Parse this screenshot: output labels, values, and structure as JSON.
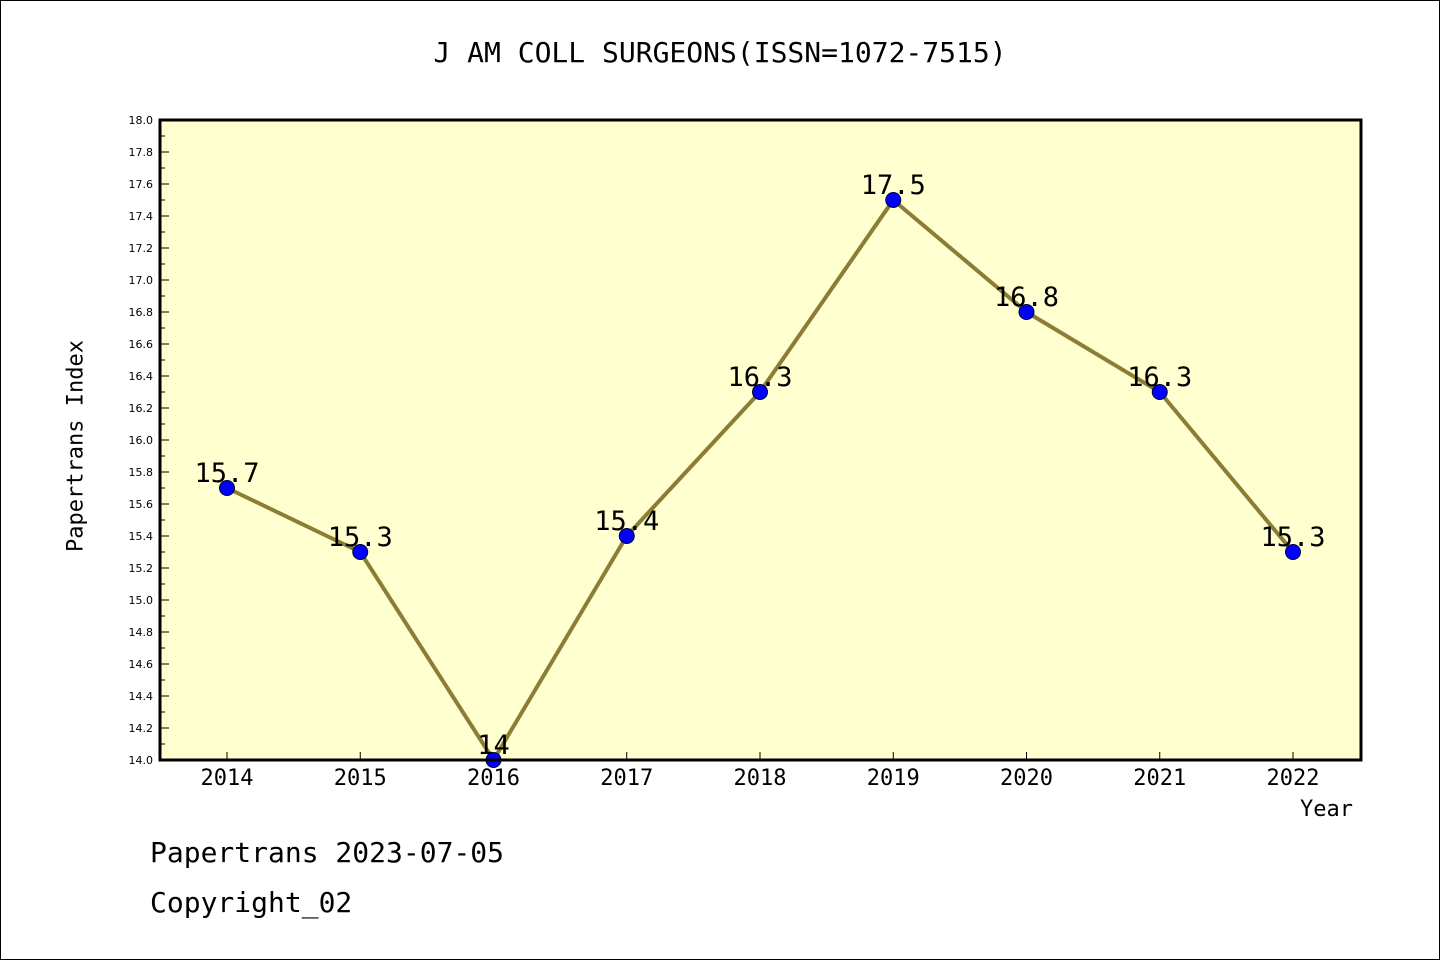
{
  "chart_data": {
    "type": "line",
    "title": "J AM COLL SURGEONS(ISSN=1072-7515)",
    "xlabel": "Year",
    "ylabel": "Papertrans Index",
    "categories": [
      "2014",
      "2015",
      "2016",
      "2017",
      "2018",
      "2019",
      "2020",
      "2021",
      "2022"
    ],
    "values": [
      15.7,
      15.3,
      14.0,
      15.4,
      16.3,
      17.5,
      16.8,
      16.3,
      15.3
    ],
    "data_labels": [
      "15.7",
      "15.3",
      "14",
      "15.4",
      "16.3",
      "17.5",
      "16.8",
      "16.3",
      "15.3"
    ],
    "ylim": [
      14.0,
      18.0
    ],
    "yticks": [
      "14.0",
      "14.2",
      "14.4",
      "14.6",
      "14.8",
      "15.0",
      "15.2",
      "15.4",
      "15.6",
      "15.8",
      "16.0",
      "16.2",
      "16.4",
      "16.6",
      "16.8",
      "17.0",
      "17.2",
      "17.4",
      "17.6",
      "17.8",
      "18.0"
    ],
    "grid": false,
    "colors": {
      "plot_background": "#ffffd0",
      "line": "#8b7d34",
      "marker": "#0000ff"
    }
  },
  "footer": {
    "line1": "Papertrans 2023-07-05",
    "line2": "Copyright_02"
  }
}
